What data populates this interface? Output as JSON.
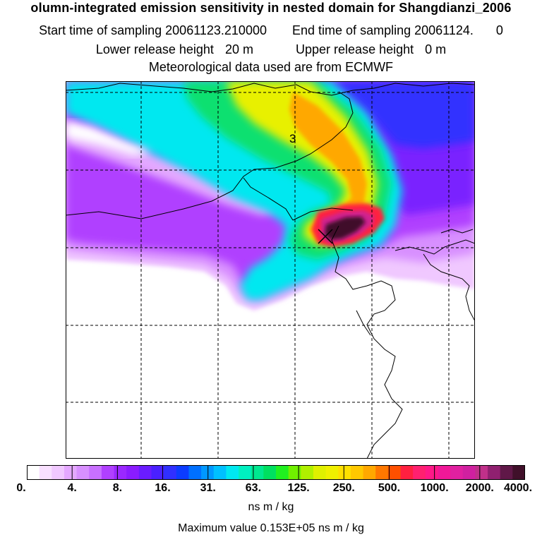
{
  "header": {
    "title": "olumn-integrated emission sensitivity in nested domain for Shangdianzi_2006",
    "start_label": "Start time of sampling",
    "start_value": "20061123.210000",
    "end_label": "End time of sampling",
    "end_value": "20061124.",
    "end_value_2": "0",
    "lower_label": "Lower release height",
    "lower_value": "20 m",
    "upper_label": "Upper release height",
    "upper_value": "0 m",
    "met_line": "Meteorological data used are from ECMWF"
  },
  "map": {
    "contour_label": "3",
    "colors": {
      "white": "#ffffff",
      "pale_violet": "#f0c8ff",
      "light_purple": "#d890ff",
      "purple": "#b040ff",
      "violet": "#8a1cff",
      "blue": "#3030ff",
      "cyan": "#00e8f0",
      "green": "#00e060",
      "yellow": "#f0f000",
      "orange": "#ffa800",
      "red": "#ff2040",
      "magenta": "#c0308a",
      "dark": "#40102a"
    }
  },
  "colorbar": {
    "tick_labels": [
      "0.",
      "4.",
      "8.",
      "16.",
      "31.",
      "63.",
      "125.",
      "250.",
      "500.",
      "1000.",
      "2000.",
      "4000."
    ],
    "unit": "ns m / kg",
    "colors": [
      "#ffffff",
      "#f8e0ff",
      "#f0c8ff",
      "#e4a8ff",
      "#d890ff",
      "#c870ff",
      "#b040ff",
      "#9a28ff",
      "#8a1cff",
      "#6a1cff",
      "#4a20ff",
      "#3030ff",
      "#0c3cff",
      "#0070ff",
      "#0098ff",
      "#00c0ff",
      "#00e8f0",
      "#00f0c0",
      "#00e890",
      "#00e060",
      "#20f020",
      "#70f000",
      "#b0f000",
      "#e0f000",
      "#f0f000",
      "#ffe000",
      "#ffc800",
      "#ffa800",
      "#ff7800",
      "#ff5000",
      "#ff2040",
      "#ff2070",
      "#ff1888",
      "#f01898",
      "#e020a0",
      "#d020a0",
      "#c0308a",
      "#902070",
      "#601848",
      "#40102a"
    ]
  },
  "footer": {
    "max_label": "Maximum value",
    "max_value": "0.153E+05",
    "max_unit": "ns m / kg"
  }
}
